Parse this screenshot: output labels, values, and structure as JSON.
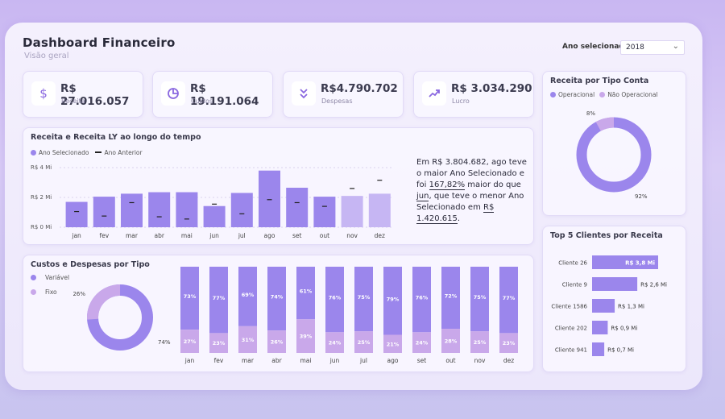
{
  "header": {
    "title": "Dashboard Financeiro",
    "subtitle": "Visão geral",
    "year_label": "Ano selecionado",
    "year_value": "2018"
  },
  "kpis": [
    {
      "icon": "dollar-icon",
      "value": "R$ 27.016.057",
      "label": "Receita"
    },
    {
      "icon": "pie-chart-icon",
      "value": "R$ 19.191.064",
      "label": "Custos"
    },
    {
      "icon": "double-chevron-down-icon",
      "value": "R$4.790.702",
      "label": "Despesas"
    },
    {
      "icon": "trend-up-icon",
      "value": "R$ 3.034.290",
      "label": "Lucro"
    }
  ],
  "colors": {
    "accent": "#9b86ec",
    "light": "#c6b6f3",
    "fixo": "#c9a8ea",
    "dark": "#222222"
  },
  "revenue_chart": {
    "title": "Receita e Receita LY ao longo do tempo",
    "legend_current": "Ano Selecionado",
    "legend_previous": "Ano Anterior",
    "y_ticks": [
      "R$ 4 Mi",
      "R$ 2 Mi",
      "R$ 0 Mi"
    ]
  },
  "insight": {
    "p1": "Em R$ 3.804.682, ago teve o maior Ano Selecionado e foi ",
    "pct": "167,82%",
    "p2": " maior do que ",
    "month": "jun",
    "p3": ", que teve o menor Ano Selecionado em ",
    "min": "R$ 1.420.615",
    "p4": "."
  },
  "costs_chart": {
    "title": "Custos e Despesas por Tipo",
    "legend": [
      "Variável",
      "Fixo"
    ],
    "donut_labels": {
      "fixo": "26%",
      "variavel": "74%"
    }
  },
  "account_chart": {
    "title": "Receita por Tipo Conta",
    "legend": [
      "Operacional",
      "Não Operacional"
    ],
    "labels": {
      "nao_operacional": "8%",
      "operacional": "92%"
    }
  },
  "clients_chart": {
    "title": "Top 5 Clientes por Receita"
  },
  "chart_data": [
    {
      "type": "bar",
      "title": "Receita e Receita LY ao longo do tempo",
      "categories": [
        "jan",
        "fev",
        "mar",
        "abr",
        "mai",
        "jun",
        "jul",
        "ago",
        "set",
        "out",
        "nov",
        "dez"
      ],
      "series": [
        {
          "name": "Ano Selecionado",
          "values": [
            1.7,
            2.05,
            2.25,
            2.35,
            2.35,
            1.42,
            2.3,
            3.8,
            2.65,
            2.05,
            2.1,
            2.25
          ]
        },
        {
          "name": "Ano Anterior",
          "values": [
            1.05,
            0.75,
            1.65,
            0.7,
            0.55,
            1.55,
            0.9,
            1.85,
            1.65,
            1.4,
            2.6,
            3.15
          ]
        }
      ],
      "highlight_from_index": 10,
      "ylim": [
        0,
        4
      ],
      "y_ticks": [
        "R$ 4 Mi",
        "R$ 2 Mi",
        "R$ 0 Mi"
      ]
    },
    {
      "type": "pie",
      "title": "Custos e Despesas por Tipo",
      "categories": [
        "Variável",
        "Fixo"
      ],
      "values": [
        74,
        26
      ]
    },
    {
      "type": "bar",
      "title": "Custos e Despesas por Tipo",
      "categories": [
        "jan",
        "fev",
        "mar",
        "abr",
        "mai",
        "jun",
        "jul",
        "ago",
        "set",
        "out",
        "nov",
        "dez"
      ],
      "series": [
        {
          "name": "Variável",
          "values": [
            73,
            77,
            69,
            74,
            61,
            76,
            75,
            79,
            76,
            72,
            75,
            77
          ]
        },
        {
          "name": "Fixo",
          "values": [
            27,
            23,
            31,
            26,
            39,
            24,
            25,
            21,
            24,
            28,
            25,
            23
          ]
        }
      ],
      "labels_var": [
        "73%",
        "77%",
        "69%",
        "74%",
        "61%",
        "76%",
        "75%",
        "79%",
        "76%",
        "72%",
        "75%",
        "77%"
      ],
      "labels_fixo": [
        "27%",
        "23%",
        "31%",
        "26%",
        "39%",
        "24%",
        "25%",
        "21%",
        "24%",
        "28%",
        "25%",
        "23%"
      ]
    },
    {
      "type": "pie",
      "title": "Receita por Tipo Conta",
      "categories": [
        "Operacional",
        "Não Operacional"
      ],
      "values": [
        92,
        8
      ]
    },
    {
      "type": "bar",
      "title": "Top 5 Clientes por Receita",
      "categories": [
        "Cliente 26",
        "Cliente 9",
        "Cliente 1586",
        "Cliente 202",
        "Cliente 941"
      ],
      "values": [
        3.8,
        2.6,
        1.3,
        0.9,
        0.7
      ],
      "value_labels": [
        "R$ 3,8 Mi",
        "R$ 2,6 Mi",
        "R$ 1,3 Mi",
        "R$ 0,9 Mi",
        "R$ 0,7 Mi"
      ],
      "xlim": [
        0,
        3.8
      ]
    }
  ]
}
